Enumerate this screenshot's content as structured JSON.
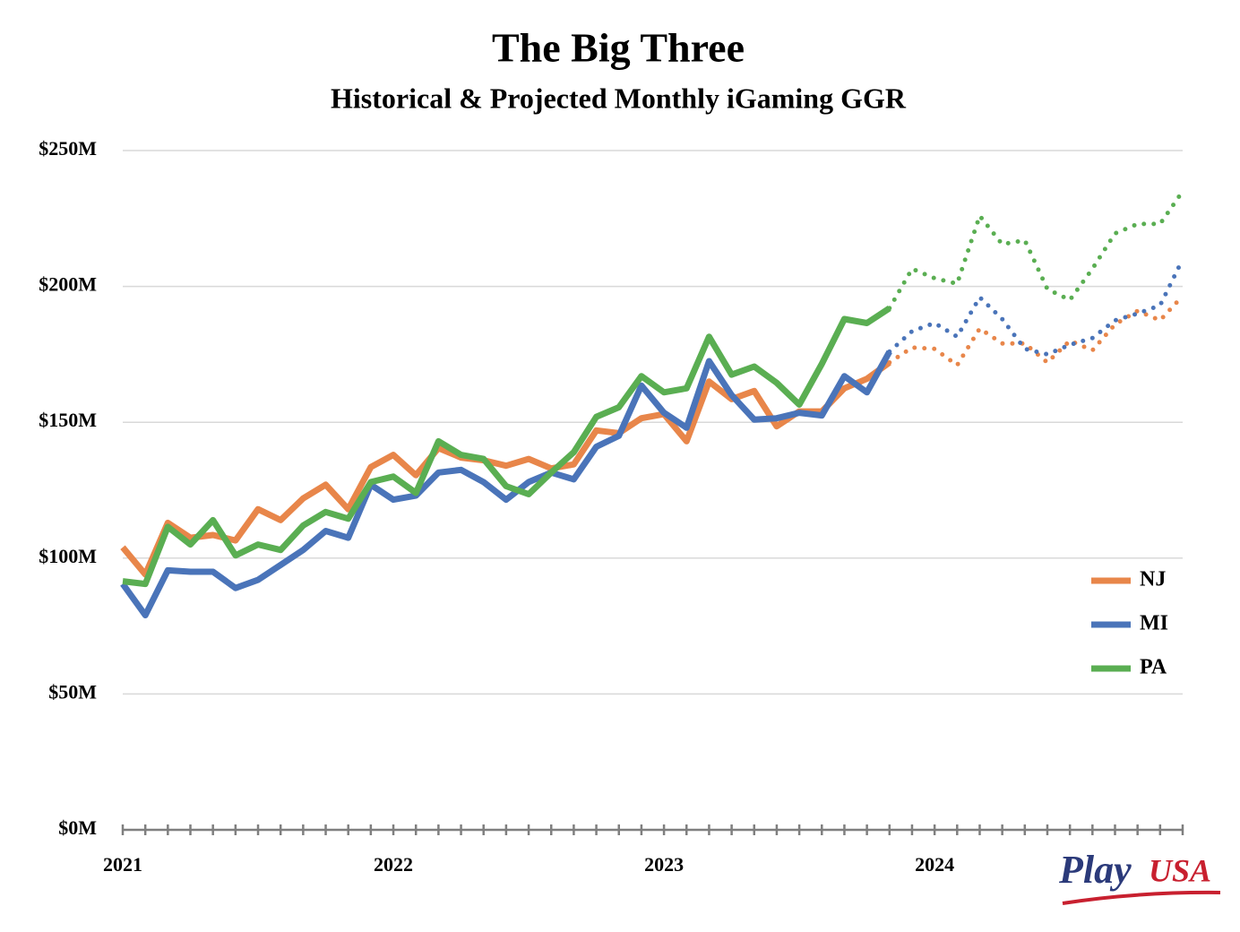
{
  "chart_data": {
    "type": "line",
    "title": "The Big Three",
    "subtitle": "Historical & Projected Monthly iGaming GGR",
    "categories": [
      "2021",
      null,
      null,
      null,
      null,
      null,
      null,
      null,
      null,
      null,
      null,
      null,
      "2022",
      null,
      null,
      null,
      null,
      null,
      null,
      null,
      null,
      null,
      null,
      null,
      "2023",
      null,
      null,
      null,
      null,
      null,
      null,
      null,
      null,
      null,
      null,
      null,
      "2024",
      null,
      null,
      null,
      null,
      null,
      null,
      null,
      null,
      null,
      null,
      null
    ],
    "series": [
      {
        "name": "NJ",
        "color": "#e8864a",
        "values": [
          104,
          94,
          113,
          107.5,
          108.5,
          106.5,
          118,
          114,
          122,
          127,
          118,
          133.5,
          138,
          130.5,
          140.5,
          137,
          136,
          134,
          136.5,
          133,
          134.5,
          147,
          146,
          151.5,
          153,
          143,
          165,
          158.5,
          161.5,
          148.5,
          154,
          154,
          162.5,
          166,
          172,
          null,
          null,
          null,
          null,
          null,
          null,
          null,
          null,
          null,
          null,
          null,
          null,
          null
        ],
        "projection": [
          null,
          null,
          null,
          null,
          null,
          null,
          null,
          null,
          null,
          null,
          null,
          null,
          null,
          null,
          null,
          null,
          null,
          null,
          null,
          null,
          null,
          null,
          null,
          null,
          null,
          null,
          null,
          null,
          null,
          null,
          null,
          null,
          null,
          null,
          null,
          177.5,
          177,
          171,
          184.5,
          179,
          179,
          172,
          180,
          176.5,
          186,
          191,
          187.5,
          196.5
        ]
      },
      {
        "name": "MI",
        "color": "#4a74b9",
        "values": [
          90.5,
          79,
          95.5,
          95,
          95,
          89,
          92,
          97.5,
          103,
          110,
          107.5,
          127,
          121.5,
          123,
          131.5,
          132.5,
          128,
          121.5,
          128,
          131.5,
          129,
          141,
          145,
          163.5,
          153.5,
          148,
          172.5,
          160,
          151,
          151.5,
          153.5,
          152.5,
          167,
          161,
          176,
          null,
          null,
          null,
          null,
          null,
          null,
          null,
          null,
          null,
          null,
          null,
          null,
          null
        ],
        "projection": [
          null,
          null,
          null,
          null,
          null,
          null,
          null,
          null,
          null,
          null,
          null,
          null,
          null,
          null,
          null,
          null,
          null,
          null,
          null,
          null,
          null,
          null,
          null,
          null,
          null,
          null,
          null,
          null,
          null,
          null,
          null,
          null,
          null,
          null,
          null,
          183.5,
          186.5,
          181.5,
          196,
          188,
          177,
          175,
          178.5,
          181,
          187.5,
          190,
          193,
          210
        ]
      },
      {
        "name": "PA",
        "color": "#5aae52",
        "values": [
          91.5,
          90.5,
          111.5,
          105,
          114,
          101,
          105,
          103,
          112,
          117,
          114.5,
          128,
          130,
          124,
          143,
          138,
          136.5,
          126.5,
          123.5,
          131.5,
          139,
          152,
          155.5,
          167,
          161,
          162.5,
          181.5,
          167.5,
          170.5,
          164.5,
          156.5,
          171.5,
          188,
          186.5,
          192,
          null,
          null,
          null,
          null,
          null,
          null,
          null,
          null,
          null,
          null,
          null,
          null,
          null
        ],
        "projection": [
          null,
          null,
          null,
          null,
          null,
          null,
          null,
          null,
          null,
          null,
          null,
          null,
          null,
          null,
          null,
          null,
          null,
          null,
          null,
          null,
          null,
          null,
          null,
          null,
          null,
          null,
          null,
          null,
          null,
          null,
          null,
          null,
          null,
          null,
          null,
          206.5,
          203,
          201,
          226,
          215.5,
          217,
          199,
          195,
          206.5,
          219.5,
          223,
          223,
          235
        ]
      }
    ],
    "ylim": [
      0,
      250
    ],
    "yticks": [
      {
        "value": 0,
        "label": "$0M"
      },
      {
        "value": 50,
        "label": "$50M"
      },
      {
        "value": 100,
        "label": "$100M"
      },
      {
        "value": 150,
        "label": "$150M"
      },
      {
        "value": 200,
        "label": "$200M"
      },
      {
        "value": 250,
        "label": "$250M"
      }
    ],
    "grid": true,
    "legend": "right"
  },
  "logo": {
    "left": "Play",
    "right": "USA"
  }
}
